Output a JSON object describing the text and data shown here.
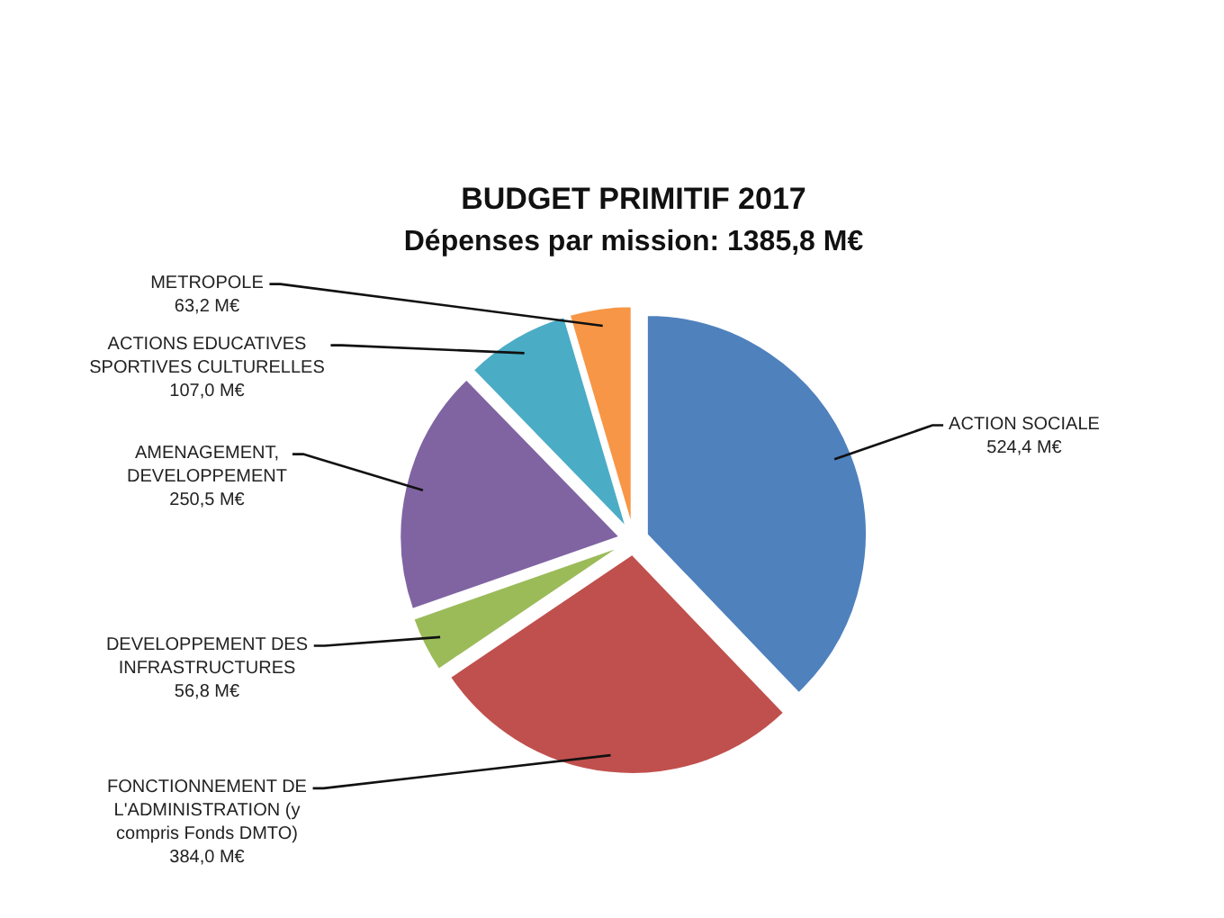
{
  "chart_data": {
    "type": "pie",
    "title": "BUDGET PRIMITIF 2017",
    "subtitle": "Dépenses par mission: 1385,8 M€",
    "categories": [
      "ACTION SOCIALE",
      "FONCTIONNEMENT DE L'ADMINISTRATION (y compris Fonds DMTO)",
      "DEVELOPPEMENT DES INFRASTRUCTURES",
      "AMENAGEMENT, DEVELOPPEMENT",
      "ACTIONS EDUCATIVES SPORTIVES CULTURELLES",
      "METROPOLE"
    ],
    "values": [
      524.4,
      384.0,
      56.8,
      250.5,
      107.0,
      63.2
    ],
    "colors": [
      "#4f81bd",
      "#c0504d",
      "#9bbb59",
      "#8064a2",
      "#4bacc6",
      "#f79646"
    ],
    "value_labels": [
      "524,4 M€",
      "384,0 M€",
      "56,8 M€",
      "250,5 M€",
      "107,0 M€",
      "63,2 M€"
    ]
  }
}
